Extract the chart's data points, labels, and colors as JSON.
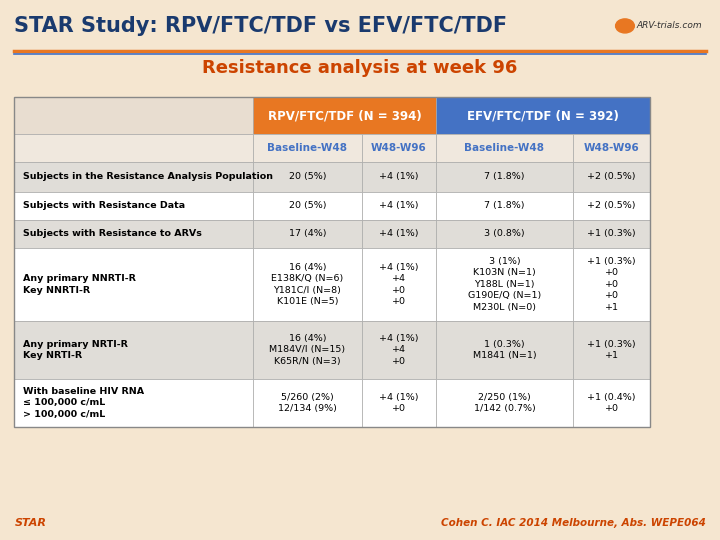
{
  "title": "STAR Study: RPV/FTC/TDF vs EFV/FTC/TDF",
  "subtitle": "Resistance analysis at week 96",
  "title_color": "#1a3a6e",
  "subtitle_color": "#cc4400",
  "bg_color": "#f5e6d0",
  "header1_color": "#e87722",
  "header2_color": "#4472c4",
  "subheader_text_color": "#4472c4",
  "col_headers": [
    "RPV/FTC/TDF (N = 394)",
    "EFV/FTC/TDF (N = 392)"
  ],
  "sub_headers": [
    "Baseline-W48",
    "W48-W96",
    "Baseline-W48",
    "W48-W96"
  ],
  "rows": [
    {
      "label": "Subjects in the Resistance Analysis Population",
      "col1": "20 (5%)",
      "col2": "+4 (1%)",
      "col3": "7 (1.8%)",
      "col4": "+2 (0.5%)",
      "shade": true
    },
    {
      "label": "Subjects with Resistance Data",
      "col1": "20 (5%)",
      "col2": "+4 (1%)",
      "col3": "7 (1.8%)",
      "col4": "+2 (0.5%)",
      "shade": false
    },
    {
      "label": "Subjects with Resistance to ARVs",
      "col1": "17 (4%)",
      "col2": "+4 (1%)",
      "col3": "3 (0.8%)",
      "col4": "+1 (0.3%)",
      "shade": true
    },
    {
      "label": "Any primary NNRTI-R\nKey NNRTI-R",
      "col1": "16 (4%)\nE138K/Q (N=6)\nY181C/I (N=8)\nK101E (N=5)",
      "col2": "+4 (1%)\n+4\n+0\n+0",
      "col3": "3 (1%)\nK103N (N=1)\nY188L (N=1)\nG190E/Q (N=1)\nM230L (N=0)",
      "col4": "+1 (0.3%)\n+0\n+0\n+0\n+1",
      "shade": false
    },
    {
      "label": "Any primary NRTI-R\nKey NRTI-R",
      "col1": "16 (4%)\nM184V/I (N=15)\nK65R/N (N=3)",
      "col2": "+4 (1%)\n+4\n+0",
      "col3": "1 (0.3%)\nM1841 (N=1)",
      "col4": "+1 (0.3%)\n+1",
      "shade": true
    },
    {
      "label": "With baseline HIV RNA\n≤ 100,000 c/mL\n> 100,000 c/mL",
      "col1": "5/260 (2%)\n12/134 (9%)",
      "col2": "+4 (1%)\n+0",
      "col3": "2/250 (1%)\n1/142 (0.7%)",
      "col4": "+1 (0.4%)\n+0",
      "shade": false
    }
  ],
  "footer_left": "STAR",
  "footer_right": "Cohen C. IAC 2014 Melbourne, Abs. WEPE064",
  "footer_color": "#cc4400",
  "line_color_orange": "#e87722",
  "line_color_blue": "#4472c4"
}
